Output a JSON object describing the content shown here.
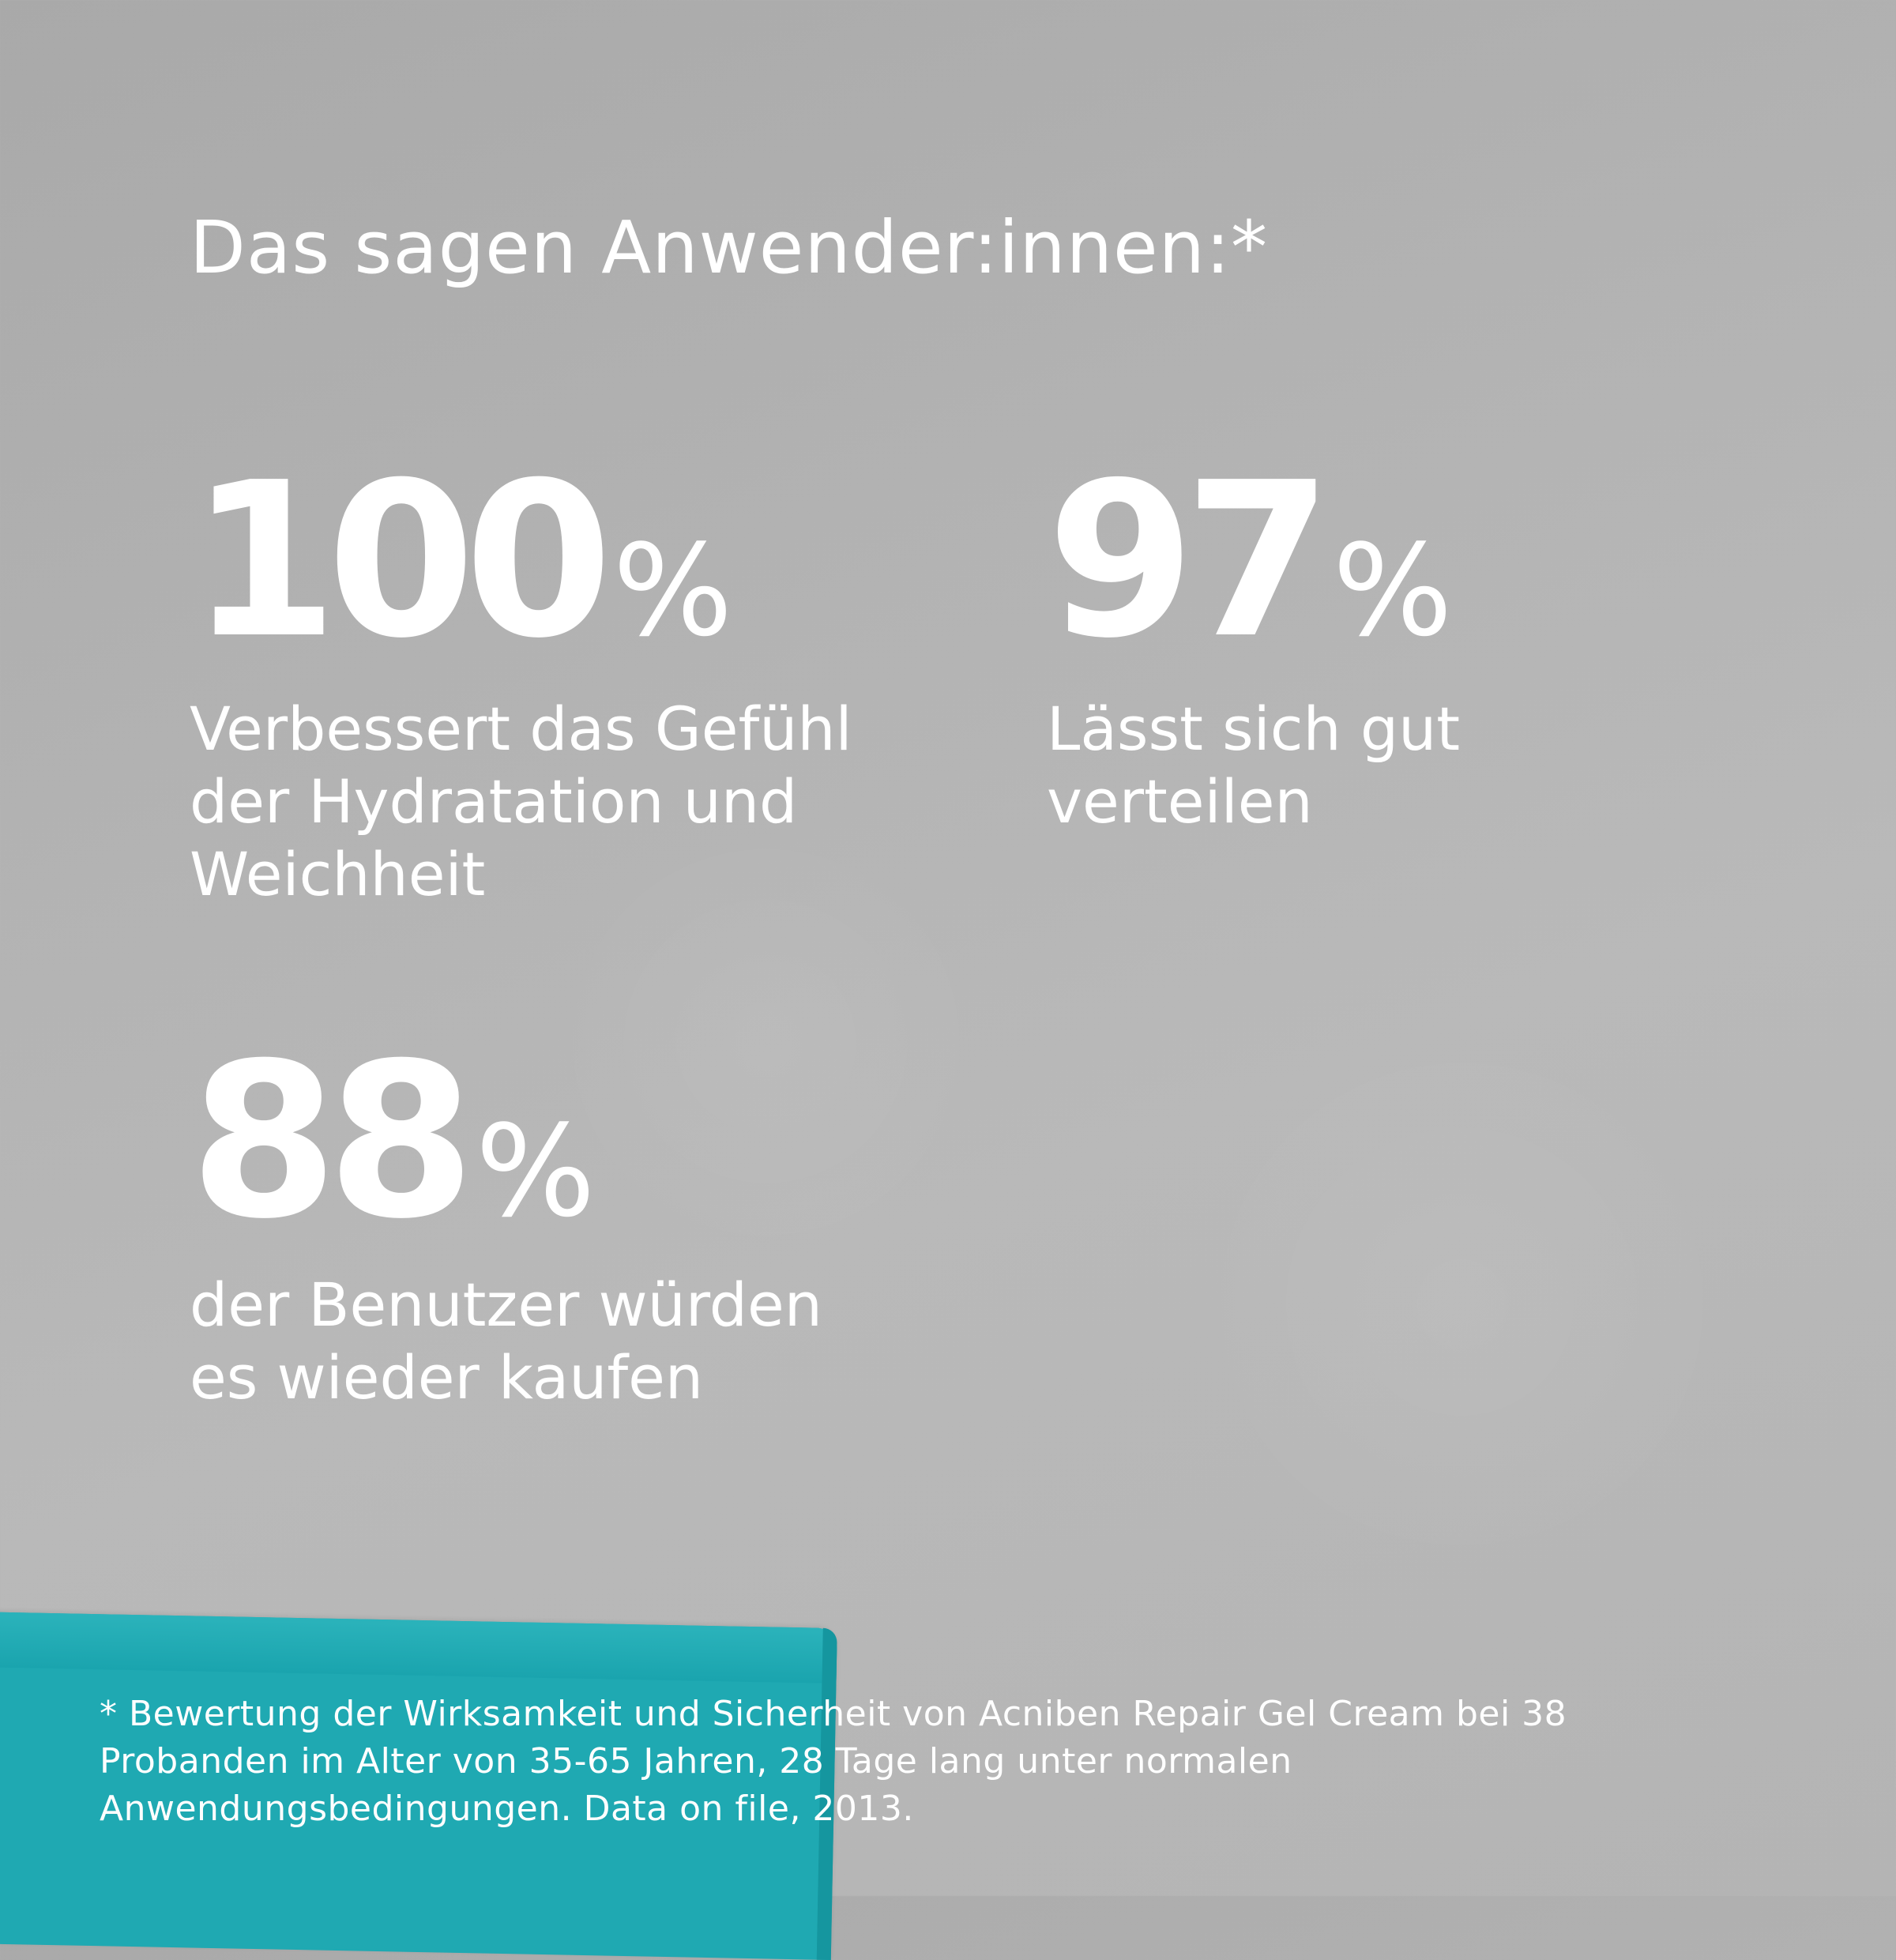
{
  "colors": {
    "background": "#b3b3b3",
    "text": "#ffffff",
    "accent_box": "#1fa9b2"
  },
  "headline": "Das sagen Anwender:innen:*",
  "stats": [
    {
      "number": "100",
      "unit": "%",
      "label_lines": [
        "Verbessert das Gefühl",
        "der Hydratation und",
        "Weichheit"
      ]
    },
    {
      "number": "97",
      "unit": "%",
      "label_lines": [
        "Lässt sich gut",
        "verteilen"
      ]
    },
    {
      "number": "88",
      "unit": "%",
      "label_lines": [
        "der Benutzer würden",
        "es wieder kaufen"
      ]
    }
  ],
  "footnote_lines": [
    "* Bewertung der Wirksamkeit und Sicherheit von Acniben Repair Gel Cream bei 38",
    "Probanden im Alter von 35-65 Jahren, 28 Tage lang unter normalen",
    "Anwendungsbedingungen. Data on file, 2013."
  ]
}
